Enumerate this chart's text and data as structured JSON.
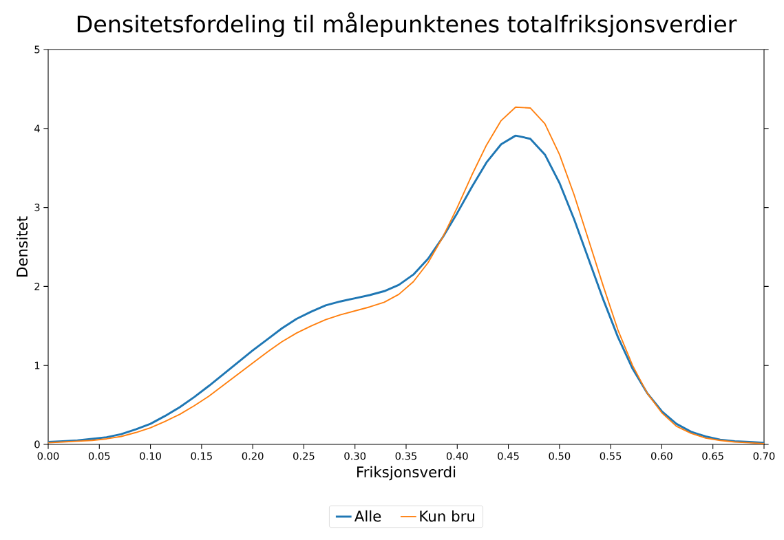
{
  "chart_data": {
    "type": "line",
    "title": "Densitetsfordeling til målepunktenes totalfriksjonsverdier",
    "xlabel": "Friksjonsverdi",
    "ylabel": "Densitet",
    "x": [
      0,
      0.0143,
      0.0286,
      0.0429,
      0.0571,
      0.0714,
      0.0857,
      0.1,
      0.1143,
      0.1286,
      0.1429,
      0.1571,
      0.1714,
      0.1857,
      0.2,
      0.2143,
      0.2286,
      0.2429,
      0.2571,
      0.2714,
      0.2857,
      0.3,
      0.3143,
      0.3286,
      0.3429,
      0.3571,
      0.3714,
      0.3857,
      0.4,
      0.4143,
      0.4286,
      0.4429,
      0.4571,
      0.4714,
      0.4857,
      0.5,
      0.5143,
      0.5286,
      0.5429,
      0.5571,
      0.5714,
      0.5857,
      0.6,
      0.6143,
      0.6286,
      0.6429,
      0.6571,
      0.6714,
      0.6857,
      0.7
    ],
    "series": [
      {
        "name": "Alle",
        "color": "#1f77b4",
        "values": [
          0.03,
          0.04,
          0.05,
          0.07,
          0.09,
          0.13,
          0.19,
          0.26,
          0.36,
          0.47,
          0.6,
          0.74,
          0.89,
          1.04,
          1.19,
          1.33,
          1.47,
          1.59,
          1.68,
          1.76,
          1.81,
          1.85,
          1.89,
          1.94,
          2.02,
          2.15,
          2.35,
          2.62,
          2.93,
          3.26,
          3.57,
          3.8,
          3.91,
          3.87,
          3.67,
          3.31,
          2.85,
          2.34,
          1.83,
          1.36,
          0.96,
          0.65,
          0.42,
          0.26,
          0.16,
          0.1,
          0.06,
          0.04,
          0.03,
          0.02
        ]
      },
      {
        "name": "Kun bru",
        "color": "#ff7f0e",
        "values": [
          0.02,
          0.03,
          0.04,
          0.05,
          0.07,
          0.1,
          0.15,
          0.21,
          0.29,
          0.38,
          0.49,
          0.61,
          0.75,
          0.89,
          1.03,
          1.17,
          1.3,
          1.41,
          1.5,
          1.58,
          1.64,
          1.69,
          1.74,
          1.8,
          1.9,
          2.06,
          2.3,
          2.62,
          3.0,
          3.41,
          3.79,
          4.1,
          4.27,
          4.26,
          4.06,
          3.67,
          3.16,
          2.58,
          2.0,
          1.45,
          1.0,
          0.65,
          0.4,
          0.23,
          0.14,
          0.08,
          0.05,
          0.03,
          0.02,
          0.01
        ]
      }
    ],
    "xlim": [
      0,
      0.7
    ],
    "ylim": [
      0,
      5
    ],
    "xticks": [
      {
        "value": 0,
        "label": "0.00"
      },
      {
        "value": 0.05,
        "label": "0.05"
      },
      {
        "value": 0.1,
        "label": "0.10"
      },
      {
        "value": 0.15,
        "label": "0.15"
      },
      {
        "value": 0.2,
        "label": "0.20"
      },
      {
        "value": 0.25,
        "label": "0.25"
      },
      {
        "value": 0.3,
        "label": "0.30"
      },
      {
        "value": 0.35,
        "label": "0.35"
      },
      {
        "value": 0.4,
        "label": "0.40"
      },
      {
        "value": 0.45,
        "label": "0.45"
      },
      {
        "value": 0.5,
        "label": "0.50"
      },
      {
        "value": 0.55,
        "label": "0.55"
      },
      {
        "value": 0.6,
        "label": "0.60"
      },
      {
        "value": 0.65,
        "label": "0.65"
      },
      {
        "value": 0.7,
        "label": "0.70"
      }
    ],
    "yticks": [
      0,
      1,
      2,
      3,
      4,
      5
    ],
    "legend": "bottom",
    "marker": "none",
    "line_style": "solid"
  }
}
